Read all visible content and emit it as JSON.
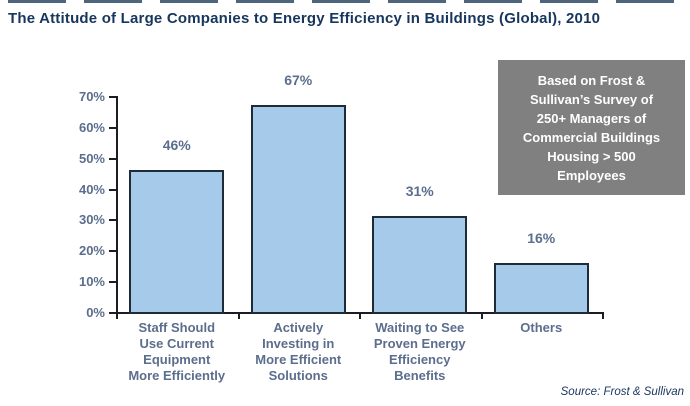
{
  "page": {
    "title": "The Attitude of Large Companies to Energy Efficiency in Buildings (Global), 2010",
    "source_note": "Source: Frost & Sullivan",
    "callout": "Based on Frost &\nSullivan’s Survey of\n250+ Managers of\nCommercial Buildings\nHousing > 500\nEmployees"
  },
  "colors": {
    "title_text": "#17365d",
    "label_text": "#5b6e8d",
    "bar_fill": "#a6cbea",
    "bar_border": "#1e2b38",
    "axis": "#1c1c24",
    "callout_bg": "#808080",
    "callout_text": "#ffffff",
    "background": "#ffffff"
  },
  "chart_data": {
    "type": "bar",
    "title": "The Attitude of Large Companies to Energy Efficiency in Buildings (Global), 2010",
    "categories": [
      "Staff Should\nUse Current\nEquipment\nMore Efficiently",
      "Actively\nInvesting in\nMore Efficient\nSolutions",
      "Waiting to See\nProven Energy\nEfficiency\nBenefits",
      "Others"
    ],
    "values": [
      46,
      67,
      31,
      16
    ],
    "value_labels": [
      "46%",
      "67%",
      "31%",
      "16%"
    ],
    "xlabel": "",
    "ylabel": "",
    "ylim": [
      0,
      70
    ],
    "ytick_step": 10,
    "ytick_labels": [
      "0%",
      "10%",
      "20%",
      "30%",
      "40%",
      "50%",
      "60%",
      "70%"
    ],
    "grid": false,
    "legend": "none",
    "annotation": "Based on Frost & Sullivan’s Survey of 250+ Managers of Commercial Buildings Housing > 500 Employees"
  }
}
